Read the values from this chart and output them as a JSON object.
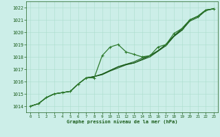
{
  "xlabel": "Graphe pression niveau de la mer (hPa)",
  "xlim": [
    -0.5,
    23.5
  ],
  "ylim": [
    1013.5,
    1022.5
  ],
  "yticks": [
    1014,
    1015,
    1016,
    1017,
    1018,
    1019,
    1020,
    1021,
    1022
  ],
  "xticks": [
    0,
    1,
    2,
    3,
    4,
    5,
    6,
    7,
    8,
    9,
    10,
    11,
    12,
    13,
    14,
    15,
    16,
    17,
    18,
    19,
    20,
    21,
    22,
    23
  ],
  "bg_color": "#cceee8",
  "grid_color": "#aaddcc",
  "line_color_dark": "#1a5c1a",
  "line_color_med": "#2d7a2d",
  "series_wavy": [
    [
      0,
      1014.0
    ],
    [
      1,
      1014.2
    ],
    [
      2,
      1014.7
    ],
    [
      3,
      1015.0
    ],
    [
      4,
      1015.1
    ],
    [
      5,
      1015.2
    ],
    [
      6,
      1015.8
    ],
    [
      7,
      1016.3
    ],
    [
      8,
      1016.3
    ],
    [
      9,
      1018.1
    ],
    [
      10,
      1018.8
    ],
    [
      11,
      1019.0
    ],
    [
      12,
      1018.4
    ],
    [
      13,
      1018.2
    ],
    [
      14,
      1018.0
    ],
    [
      15,
      1018.1
    ],
    [
      16,
      1018.8
    ],
    [
      17,
      1019.0
    ],
    [
      18,
      1019.9
    ],
    [
      19,
      1020.3
    ],
    [
      20,
      1021.0
    ],
    [
      21,
      1021.3
    ],
    [
      22,
      1021.8
    ],
    [
      23,
      1021.9
    ]
  ],
  "series_smooth1": [
    [
      0,
      1014.0
    ],
    [
      1,
      1014.2
    ],
    [
      2,
      1014.7
    ],
    [
      3,
      1015.0
    ],
    [
      4,
      1015.1
    ],
    [
      5,
      1015.2
    ],
    [
      6,
      1015.8
    ],
    [
      7,
      1016.3
    ],
    [
      8,
      1016.4
    ],
    [
      9,
      1016.6
    ],
    [
      10,
      1016.9
    ],
    [
      11,
      1017.2
    ],
    [
      12,
      1017.4
    ],
    [
      13,
      1017.6
    ],
    [
      14,
      1017.9
    ],
    [
      15,
      1018.1
    ],
    [
      16,
      1018.5
    ],
    [
      17,
      1019.0
    ],
    [
      18,
      1019.7
    ],
    [
      19,
      1020.3
    ],
    [
      20,
      1021.0
    ],
    [
      21,
      1021.3
    ],
    [
      22,
      1021.8
    ],
    [
      23,
      1021.9
    ]
  ],
  "series_smooth2": [
    [
      0,
      1014.0
    ],
    [
      1,
      1014.2
    ],
    [
      2,
      1014.7
    ],
    [
      3,
      1015.0
    ],
    [
      4,
      1015.1
    ],
    [
      5,
      1015.2
    ],
    [
      6,
      1015.8
    ],
    [
      7,
      1016.3
    ],
    [
      8,
      1016.4
    ],
    [
      9,
      1016.6
    ],
    [
      10,
      1016.9
    ],
    [
      11,
      1017.2
    ],
    [
      12,
      1017.4
    ],
    [
      13,
      1017.5
    ],
    [
      14,
      1017.8
    ],
    [
      15,
      1018.1
    ],
    [
      16,
      1018.5
    ],
    [
      17,
      1019.0
    ],
    [
      18,
      1019.7
    ],
    [
      19,
      1020.2
    ],
    [
      20,
      1021.0
    ],
    [
      21,
      1021.3
    ],
    [
      22,
      1021.8
    ],
    [
      23,
      1021.9
    ]
  ],
  "series_smooth3": [
    [
      0,
      1014.0
    ],
    [
      1,
      1014.2
    ],
    [
      2,
      1014.7
    ],
    [
      3,
      1015.0
    ],
    [
      4,
      1015.1
    ],
    [
      5,
      1015.2
    ],
    [
      6,
      1015.8
    ],
    [
      7,
      1016.3
    ],
    [
      8,
      1016.4
    ],
    [
      9,
      1016.55
    ],
    [
      10,
      1016.85
    ],
    [
      11,
      1017.1
    ],
    [
      12,
      1017.35
    ],
    [
      13,
      1017.5
    ],
    [
      14,
      1017.75
    ],
    [
      15,
      1018.0
    ],
    [
      16,
      1018.45
    ],
    [
      17,
      1018.9
    ],
    [
      18,
      1019.65
    ],
    [
      19,
      1020.15
    ],
    [
      20,
      1020.9
    ],
    [
      21,
      1021.2
    ],
    [
      22,
      1021.75
    ],
    [
      23,
      1021.9
    ]
  ]
}
